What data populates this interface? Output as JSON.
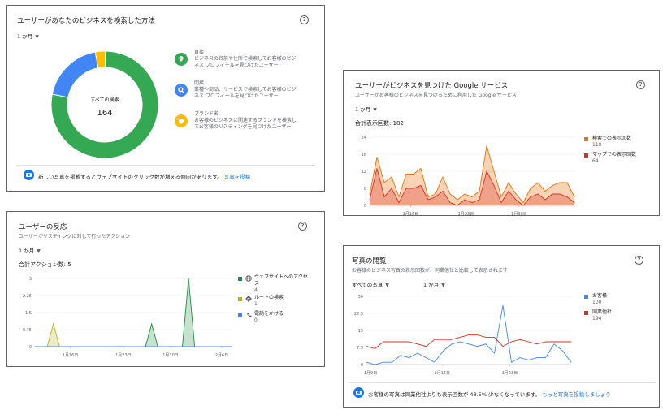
{
  "search_method": {
    "title": "ユーザーがあなたのビジネスを検索した方法",
    "period": "1 か月",
    "center_label": "すべての検索",
    "center_value": "164",
    "legend": [
      {
        "title": "直接",
        "desc1": "ビジネスの名前や住所で検索してお客様のビジ",
        "desc2": "ネス プロフィールを見つけたユーザー",
        "color": "#34a853",
        "icon": "location-pin-icon",
        "share": 0.78
      },
      {
        "title": "間接",
        "desc1": "業種や商品、サービスで検索してお客様のビジ",
        "desc2": "ネス プロフィールを見つけたユーザー",
        "color": "#4285f4",
        "icon": "search-icon",
        "share": 0.19
      },
      {
        "title": "ブランド名",
        "desc1": "お客様のビジネスに関連するブランドを検索し",
        "desc2": "てお客様のリスティングを見つけたユーザー",
        "color": "#fbbc04",
        "icon": "tag-icon",
        "share": 0.03
      }
    ],
    "footer_text": "新しい写真を掲載するとウェブサイトのクリック数が増える傾向があります。",
    "footer_link": "写真を投稿"
  },
  "google_services": {
    "title": "ユーザーがビジネスを見つけた Google サービス",
    "subtitle": "ユーザーがお客様のビジネスを見つけるために利用した Google サービス",
    "period": "1 か月",
    "total_label": "合計表示回数: 182",
    "legend": [
      {
        "name": "検索での表示回数",
        "value": "118",
        "color": "#e8710a"
      },
      {
        "name": "マップでの表示回数",
        "value": "64",
        "color": "#d93025"
      }
    ]
  },
  "reactions": {
    "title": "ユーザーの反応",
    "subtitle": "ユーザーがリスティングに対して行ったアクション",
    "period": "1 か月",
    "total_label": "合計アクション数: 5",
    "legend": [
      {
        "name1": "ウェブサイトへのアクセ",
        "name2": "ス",
        "value": "4",
        "color": "#1e8e3e",
        "icon": "globe-icon"
      },
      {
        "name1": "ルートの検索",
        "name2": "",
        "value": "1",
        "color": "#b5b51a",
        "icon": "directions-icon"
      },
      {
        "name1": "電話をかける",
        "name2": "",
        "value": "0",
        "color": "#4285f4",
        "icon": "phone-icon"
      }
    ]
  },
  "photo_views": {
    "title": "写真の閲覧",
    "subtitle": "お客様のビジネス写真の表示回数が、同業他社と比較して表示されます",
    "filter": "すべての写真",
    "period": "1 か月",
    "legend": [
      {
        "name": "お客様",
        "value": "100",
        "color": "#4285f4"
      },
      {
        "name": "同業他社",
        "value": "194",
        "color": "#d93025"
      }
    ],
    "footer_text": "お客様の写真は同業他社よりも表示回数が 48.5% 少なくなっています。",
    "footer_link": "もっと写真を投稿しましょう"
  },
  "chart_data": [
    {
      "type": "pie",
      "labels": [
        "直接",
        "間接",
        "ブランド名"
      ],
      "values": [
        0.78,
        0.19,
        0.03
      ],
      "total": 164
    },
    {
      "type": "area",
      "x_ticks": [
        "1月16日",
        "1月23日",
        "1月30日"
      ],
      "ylim": [
        0,
        24
      ],
      "y_ticks": [
        "0",
        "6",
        "12",
        "18",
        "24"
      ],
      "series": [
        {
          "name": "検索での表示回数",
          "values": [
            4,
            17,
            8,
            10,
            3,
            11,
            11,
            13,
            3,
            4,
            10,
            4,
            2,
            4,
            3,
            5,
            21,
            12,
            3,
            8,
            4,
            1,
            6,
            8,
            5,
            7,
            8,
            8,
            3
          ]
        },
        {
          "name": "マップでの表示回数",
          "values": [
            2,
            13,
            3,
            6,
            1,
            6,
            6,
            7,
            2,
            3,
            5,
            1,
            0,
            2,
            1,
            2,
            12,
            7,
            1,
            5,
            2,
            0,
            3,
            4,
            2,
            4,
            4,
            3,
            1
          ]
        }
      ]
    },
    {
      "type": "area",
      "x_ticks": [
        "1月16日",
        "1月23日",
        "1月30日",
        "2月6日"
      ],
      "ylim": [
        0,
        3
      ],
      "y_ticks": [
        "0",
        "0.75",
        "1.5",
        "2.25",
        "3"
      ],
      "series": [
        {
          "name": "ウェブサイトへのアクセス",
          "values": [
            0,
            0,
            0,
            0,
            0,
            0,
            0,
            0,
            0,
            0,
            0,
            0,
            0,
            0,
            0,
            0,
            0,
            0,
            0,
            1,
            0,
            0,
            0,
            0,
            0,
            3,
            0,
            0,
            0,
            0,
            0,
            0,
            0
          ]
        },
        {
          "name": "ルートの検索",
          "values": [
            0,
            0,
            0,
            1,
            0,
            0,
            0,
            0,
            0,
            0,
            0,
            0,
            0,
            0,
            0,
            0,
            0,
            0,
            0,
            0,
            0,
            0,
            0,
            0,
            0,
            0,
            0,
            0,
            0,
            0,
            0,
            0,
            0
          ]
        },
        {
          "name": "電話をかける",
          "values": [
            0,
            0,
            0,
            0,
            0,
            0,
            0,
            0,
            0,
            0,
            0,
            0,
            0,
            0,
            0,
            0,
            0,
            0,
            0,
            0,
            0,
            0,
            0,
            0,
            0,
            0,
            0,
            0,
            0,
            0,
            0,
            0,
            0
          ]
        }
      ]
    },
    {
      "type": "line",
      "x_ticks": [
        "1月9日",
        "1月16日",
        "1月23日"
      ],
      "ylim": [
        0,
        30
      ],
      "y_ticks": [
        "0",
        "7.5",
        "15",
        "22.5",
        "30"
      ],
      "series": [
        {
          "name": "お客様",
          "values": [
            1,
            0,
            1,
            1,
            4,
            3,
            5,
            3,
            1,
            6,
            9,
            10,
            9,
            8,
            9,
            5,
            26,
            1,
            3,
            2,
            3,
            3,
            9,
            6,
            1
          ]
        },
        {
          "name": "同業他社",
          "values": [
            8,
            7,
            10,
            10,
            10,
            10,
            9,
            8,
            11,
            11,
            11,
            12,
            13,
            13,
            12,
            12,
            8,
            10,
            11,
            10,
            9,
            10,
            10,
            10,
            10
          ]
        }
      ]
    }
  ]
}
